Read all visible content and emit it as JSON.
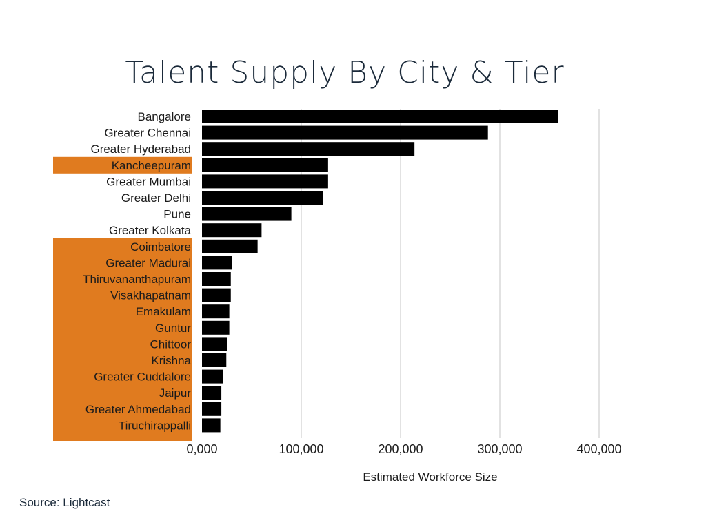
{
  "chart_data": {
    "type": "bar",
    "orientation": "horizontal",
    "title": "Talent Supply By City & Tier",
    "xlabel": "Estimated Workforce Size",
    "ylabel": "",
    "xlim": [
      0,
      400000
    ],
    "xticks": [
      0,
      100000,
      200000,
      300000,
      400000
    ],
    "xtick_labels": [
      "0,000",
      "100,000",
      "200,000",
      "300,000",
      "400,000"
    ],
    "grid": "vertical",
    "categories": [
      "Bangalore",
      "Greater Chennai",
      "Greater Hyderabad",
      "Kancheepuram",
      "Greater Mumbai",
      "Greater Delhi",
      "Pune",
      "Greater Kolkata",
      "Coimbatore",
      "Greater Madurai",
      "Thiruvananthapuram",
      "Visakhapatnam",
      "Emakulam",
      "Guntur",
      "Chittoor",
      "Krishna",
      "Greater Cuddalore",
      "Jaipur",
      "Greater Ahmedabad",
      "Tiruchirappalli"
    ],
    "values": [
      359000,
      288000,
      214000,
      127000,
      127000,
      122000,
      90000,
      60000,
      56000,
      30000,
      29000,
      29000,
      27500,
      27500,
      25000,
      24500,
      21000,
      19500,
      19500,
      18500
    ],
    "highlighted": [
      false,
      false,
      false,
      true,
      false,
      false,
      false,
      false,
      true,
      true,
      true,
      true,
      true,
      true,
      true,
      true,
      true,
      true,
      true,
      true
    ],
    "bar_color": "#000000",
    "highlight_color": "#e07b1f",
    "grid_color": "#d9d9d9"
  },
  "source": "Source: Lightcast"
}
